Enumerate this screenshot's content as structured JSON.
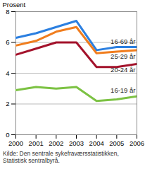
{
  "chart_data": {
    "type": "line",
    "y_label": "Prosent",
    "source": "Kilde: Den sentrale sykefraværsstatistikken, Statistisk sentralbyrå.",
    "x": [
      2000,
      2001,
      2002,
      2003,
      2004,
      2005,
      2006
    ],
    "xlim": [
      2000,
      2006
    ],
    "xticks": [
      2000,
      2001,
      2002,
      2003,
      2004,
      2005,
      2006
    ],
    "ylim": [
      0,
      8
    ],
    "yticks": [
      0,
      2,
      4,
      6,
      8
    ],
    "grid": true,
    "series": [
      {
        "name": "16-69 år",
        "color": "#2b7fe0",
        "values": [
          6.3,
          6.6,
          7.0,
          7.4,
          5.5,
          5.7,
          5.7
        ]
      },
      {
        "name": "25-29 år",
        "color": "#f07d1e",
        "values": [
          5.8,
          6.1,
          6.7,
          7.0,
          5.3,
          5.4,
          5.5
        ]
      },
      {
        "name": "20-24 år",
        "color": "#a3122b",
        "values": [
          5.2,
          5.6,
          6.0,
          6.0,
          4.4,
          4.4,
          4.6
        ]
      },
      {
        "name": "16-19 år",
        "color": "#7cc243",
        "values": [
          2.9,
          3.1,
          3.0,
          3.1,
          2.2,
          2.3,
          2.5
        ]
      }
    ]
  }
}
